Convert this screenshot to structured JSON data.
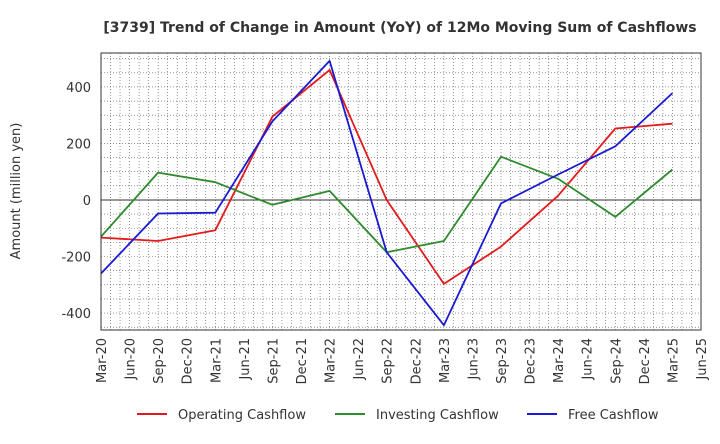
{
  "chart_data": {
    "type": "line",
    "title": "[3739]  Trend of Change in Amount (YoY) of 12Mo Moving Sum of Cashflows",
    "xlabel": "",
    "ylabel": "Amount (million yen)",
    "categories": [
      "Mar-20",
      "Jun-20",
      "Sep-20",
      "Dec-20",
      "Mar-21",
      "Jun-21",
      "Sep-21",
      "Dec-21",
      "Mar-22",
      "Jun-22",
      "Sep-22",
      "Dec-22",
      "Mar-23",
      "Jun-23",
      "Sep-23",
      "Dec-23",
      "Mar-24",
      "Jun-24",
      "Sep-24",
      "Dec-24",
      "Mar-25",
      "Jun-25"
    ],
    "ylim": [
      -460,
      520
    ],
    "yticks": [
      -400,
      -200,
      0,
      200,
      400
    ],
    "ytick_labels": [
      "-400",
      "-200",
      "0",
      "200",
      "400"
    ],
    "grid": true,
    "legend_position": "bottom",
    "series": [
      {
        "name": "Operating Cashflow",
        "color": "#e41a1c",
        "values": [
          -133,
          null,
          -145,
          null,
          -107,
          null,
          295,
          null,
          460,
          null,
          0,
          null,
          -297,
          null,
          -165,
          null,
          15,
          null,
          253,
          null,
          270,
          null
        ]
      },
      {
        "name": "Investing Cashflow",
        "color": "#2e8b2e",
        "values": [
          -130,
          null,
          97,
          null,
          63,
          null,
          -17,
          null,
          32,
          null,
          -185,
          null,
          -145,
          null,
          153,
          null,
          75,
          null,
          -60,
          null,
          108,
          null
        ]
      },
      {
        "name": "Free Cashflow",
        "color": "#1a1ad4",
        "values": [
          -260,
          null,
          -48,
          null,
          -45,
          null,
          278,
          null,
          492,
          null,
          -185,
          null,
          -443,
          null,
          -12,
          null,
          90,
          null,
          190,
          null,
          378,
          null
        ]
      }
    ]
  }
}
